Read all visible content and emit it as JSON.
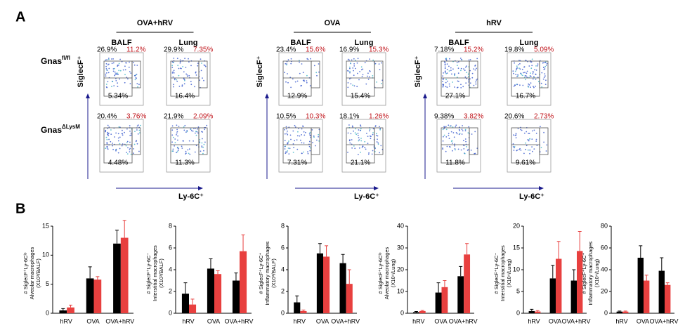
{
  "panel_a": {
    "label": "A",
    "rows": [
      {
        "name": "Gnas",
        "sup": "fl/fl"
      },
      {
        "name": "Gnas",
        "sup": "ΔLysM"
      }
    ],
    "y_axis_label": "SiglecF⁺",
    "x_axis_label": "Ly-6C⁺",
    "groups": [
      {
        "title": "OVA+hRV",
        "columns": [
          "BALF",
          "Lung"
        ],
        "plots": [
          [
            {
              "tl": "26.9%",
              "tr": "11.2%",
              "bl": "5.34%"
            },
            {
              "tl": "29.9%",
              "tr": "7.35%",
              "bl": "16.4%"
            }
          ],
          [
            {
              "tl": "20.4%",
              "tr": "3.76%",
              "bl": "4.48%"
            },
            {
              "tl": "21.9%",
              "tr": "2.09%",
              "bl": "11.3%"
            }
          ]
        ]
      },
      {
        "title": "OVA",
        "columns": [
          "BALF",
          "Lung"
        ],
        "plots": [
          [
            {
              "tl": "23.4%",
              "tr": "15.6%",
              "bl": "12.9%"
            },
            {
              "tl": "16.9%",
              "tr": "15.3%",
              "bl": "15.4%"
            }
          ],
          [
            {
              "tl": "10.5%",
              "tr": "10.3%",
              "bl": "7.31%"
            },
            {
              "tl": "18.1%",
              "tr": "1.26%",
              "bl": "21.1%"
            }
          ]
        ]
      },
      {
        "title": "hRV",
        "columns": [
          "BALF",
          "Lung"
        ],
        "plots": [
          [
            {
              "tl": "7.18%",
              "tr": "15.2%",
              "bl": "27.1%"
            },
            {
              "tl": "19.8%",
              "tr": "5.09%",
              "bl": "16.7%"
            }
          ],
          [
            {
              "tl": "9.38%",
              "tr": "3.82%",
              "bl": "11.8%"
            },
            {
              "tl": "20.6%",
              "tr": "2.73%",
              "bl": "9.61%"
            }
          ]
        ]
      }
    ]
  },
  "panel_b": {
    "label": "B"
  },
  "chart_data": [
    {
      "type": "bar",
      "ylabel": [
        "# SiglecF⁺Ly-6Cˡᵒ",
        "Alveolar macrophages",
        "(X10³/BALF)"
      ],
      "categories": [
        "hRV",
        "OVA",
        "OVA+hRV"
      ],
      "ylim": [
        0,
        15
      ],
      "yticks": [
        0,
        5,
        10,
        15
      ],
      "series": [
        {
          "color": "#000000",
          "values": [
            0.5,
            6,
            12
          ],
          "errors": [
            0.3,
            2,
            2.3
          ]
        },
        {
          "color": "#e8403f",
          "values": [
            1,
            5.8,
            13
          ],
          "errors": [
            0.4,
            0.5,
            3
          ]
        }
      ]
    },
    {
      "type": "bar",
      "ylabel": [
        "# SiglecF⁺Ly-6C⁻",
        "Interstitial macrophages",
        "(X10³/BALF)"
      ],
      "categories": [
        "hRV",
        "OVA",
        "OVA+hRV"
      ],
      "ylim": [
        0,
        8
      ],
      "yticks": [
        0,
        2,
        4,
        6,
        8
      ],
      "series": [
        {
          "color": "#000000",
          "values": [
            1.8,
            4.1,
            3.0
          ],
          "errors": [
            1,
            0.9,
            0.7
          ]
        },
        {
          "color": "#e8403f",
          "values": [
            0.8,
            3.6,
            5.7
          ],
          "errors": [
            0.5,
            0.3,
            1.5
          ]
        }
      ]
    },
    {
      "type": "bar",
      "ylabel": [
        "# SiglecF⁺Ly-6C⁺",
        "Inflammatory macrophages",
        "(X10³/BALF)"
      ],
      "categories": [
        "hRV",
        "OVA",
        "OVA+hRV"
      ],
      "ylim": [
        0,
        8
      ],
      "yticks": [
        0,
        2,
        4,
        6,
        8
      ],
      "series": [
        {
          "color": "#000000",
          "values": [
            1.0,
            5.5,
            4.6
          ],
          "errors": [
            0.6,
            0.9,
            0.8
          ]
        },
        {
          "color": "#e8403f",
          "values": [
            0.2,
            5.2,
            2.7
          ],
          "errors": [
            0.1,
            1.0,
            1.3
          ]
        }
      ]
    },
    {
      "type": "bar",
      "ylabel": [
        "# SiglecF⁺Ly-6Cˡᵒ",
        "Alveolar macrophages",
        "(X10⁴/Lung)"
      ],
      "categories": [
        "hRV",
        "OVA",
        "OVA+hRV"
      ],
      "ylim": [
        0,
        40
      ],
      "yticks": [
        0,
        10,
        20,
        30,
        40
      ],
      "series": [
        {
          "color": "#000000",
          "values": [
            0.5,
            9.5,
            17
          ],
          "errors": [
            0.3,
            4.5,
            4.5
          ]
        },
        {
          "color": "#e8403f",
          "values": [
            1,
            12,
            27
          ],
          "errors": [
            0.3,
            3,
            5
          ]
        }
      ]
    },
    {
      "type": "bar",
      "ylabel": [
        "# SiglecF⁺Ly-6C⁻",
        "Interstitial macrophages",
        "(X10⁴/Lung)"
      ],
      "categories": [
        "hRV",
        "OVA",
        "OVA+hRV"
      ],
      "ylim": [
        0,
        20
      ],
      "yticks": [
        0,
        5,
        10,
        15,
        20
      ],
      "series": [
        {
          "color": "#000000",
          "values": [
            0.5,
            8,
            7.5
          ],
          "errors": [
            0.4,
            3,
            2.5
          ]
        },
        {
          "color": "#e8403f",
          "values": [
            0.4,
            12.5,
            14.3
          ],
          "errors": [
            0.2,
            4,
            4.5
          ]
        }
      ]
    },
    {
      "type": "bar",
      "ylabel": [
        "# SiglecF⁺Ly-6C⁺",
        "Inflammatory macrophages",
        "(X10⁴/Lung)"
      ],
      "categories": [
        "hRV",
        "OVA",
        "OVA+hRV"
      ],
      "ylim": [
        0,
        80
      ],
      "yticks": [
        0,
        20,
        40,
        60,
        80
      ],
      "series": [
        {
          "color": "#000000",
          "values": [
            1.5,
            51,
            39
          ],
          "errors": [
            0.5,
            11,
            12
          ]
        },
        {
          "color": "#e8403f",
          "values": [
            1.5,
            30,
            26
          ],
          "errors": [
            0.5,
            5,
            2
          ]
        }
      ]
    }
  ]
}
